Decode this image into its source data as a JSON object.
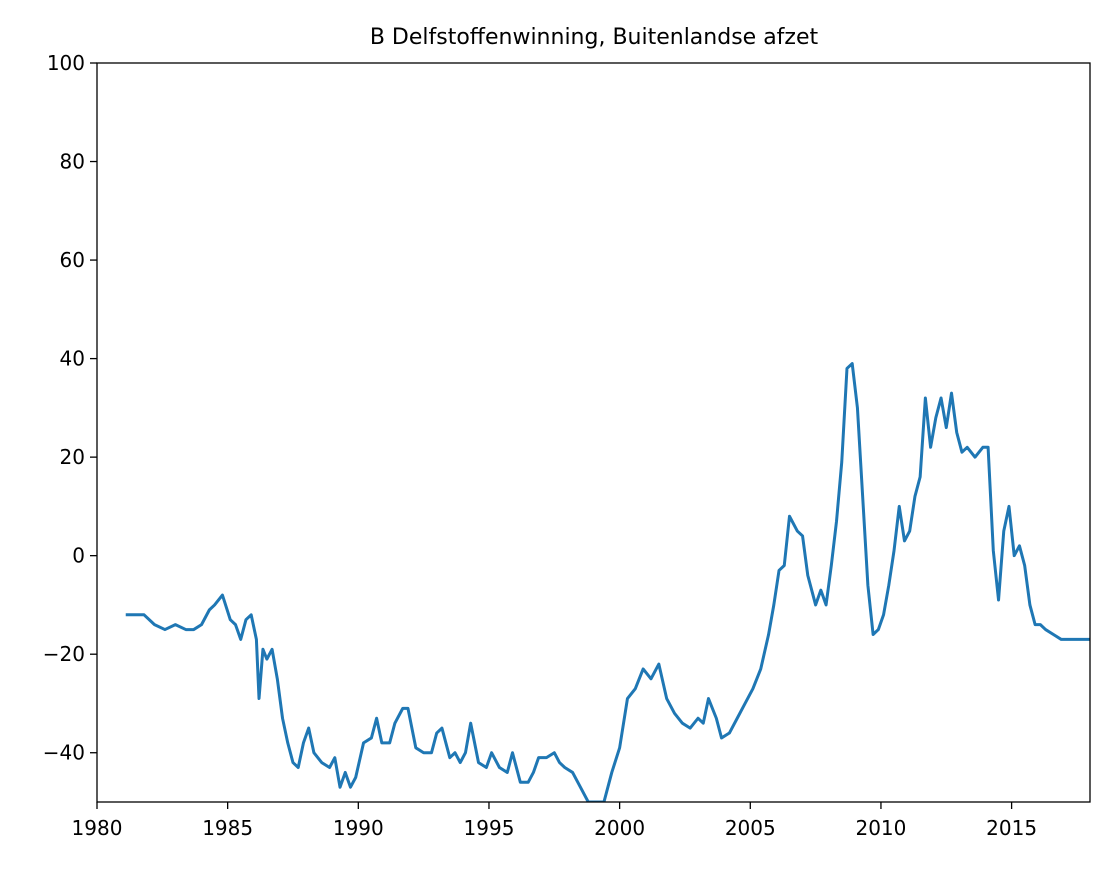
{
  "chart_data": {
    "type": "line",
    "title": "B Delfstoffenwinning, Buitenlandse afzet",
    "xlabel": "",
    "ylabel": "",
    "xlim": [
      1980,
      2018
    ],
    "ylim": [
      -50,
      100
    ],
    "x_ticks": [
      1980,
      1985,
      1990,
      1995,
      2000,
      2005,
      2010,
      2015
    ],
    "x_tick_labels": [
      "1980",
      "1985",
      "1990",
      "1995",
      "2000",
      "2005",
      "2010",
      "2015"
    ],
    "y_ticks": [
      -40,
      -20,
      0,
      20,
      40,
      60,
      80,
      100
    ],
    "y_tick_labels": [
      "−40",
      "−20",
      "0",
      "20",
      "40",
      "60",
      "80",
      "100"
    ],
    "grid": false,
    "legend": "none",
    "line_color": "#1f77b4",
    "series": [
      {
        "x": [
          1981.1,
          1981.5,
          1981.8,
          1982.2,
          1982.6,
          1983.0,
          1983.4,
          1983.7,
          1984.0,
          1984.3,
          1984.5,
          1984.8,
          1985.1,
          1985.3,
          1985.5,
          1985.7,
          1985.9,
          1986.1,
          1986.2,
          1986.35,
          1986.5,
          1986.7,
          1986.9,
          1987.1,
          1987.3,
          1987.5,
          1987.7,
          1987.9,
          1988.1,
          1988.3,
          1988.6,
          1988.9,
          1989.1,
          1989.3,
          1989.5,
          1989.7,
          1989.9,
          1990.2,
          1990.5,
          1990.7,
          1990.9,
          1991.2,
          1991.4,
          1991.7,
          1991.9,
          1992.2,
          1992.5,
          1992.8,
          1993.0,
          1993.2,
          1993.5,
          1993.7,
          1993.9,
          1994.1,
          1994.3,
          1994.6,
          1994.9,
          1995.1,
          1995.4,
          1995.7,
          1995.9,
          1996.2,
          1996.5,
          1996.7,
          1996.9,
          1997.2,
          1997.5,
          1997.7,
          1997.9,
          1998.2,
          1998.5,
          1998.8,
          1999.1,
          1999.4,
          1999.7,
          2000.0,
          2000.3,
          2000.6,
          2000.9,
          2001.2,
          2001.5,
          2001.8,
          2002.1,
          2002.4,
          2002.7,
          2003.0,
          2003.2,
          2003.4,
          2003.7,
          2003.9,
          2004.2,
          2004.5,
          2004.8,
          2005.1,
          2005.4,
          2005.7,
          2005.9,
          2006.1,
          2006.3,
          2006.5,
          2006.8,
          2007.0,
          2007.2,
          2007.5,
          2007.7,
          2007.9,
          2008.1,
          2008.3,
          2008.5,
          2008.7,
          2008.9,
          2009.1,
          2009.3,
          2009.5,
          2009.7,
          2009.9,
          2010.1,
          2010.3,
          2010.5,
          2010.7,
          2010.9,
          2011.1,
          2011.3,
          2011.5,
          2011.7,
          2011.9,
          2012.1,
          2012.3,
          2012.5,
          2012.7,
          2012.9,
          2013.1,
          2013.3,
          2013.6,
          2013.9,
          2014.1,
          2014.3,
          2014.5,
          2014.7,
          2014.9,
          2015.1,
          2015.3,
          2015.5,
          2015.7,
          2015.9,
          2016.1,
          2016.3,
          2016.6,
          2016.9,
          2017.2,
          2017.5,
          2017.8,
          2018.0
        ],
        "y": [
          -12,
          -12,
          -12,
          -14,
          -15,
          -14,
          -15,
          -15,
          -14,
          -11,
          -10,
          -8,
          -13,
          -14,
          -17,
          -13,
          -12,
          -17,
          -29,
          -19,
          -21,
          -19,
          -25,
          -33,
          -38,
          -42,
          -43,
          -38,
          -35,
          -40,
          -42,
          -43,
          -41,
          -47,
          -44,
          -47,
          -45,
          -38,
          -37,
          -33,
          -38,
          -38,
          -34,
          -31,
          -31,
          -39,
          -40,
          -40,
          -36,
          -35,
          -41,
          -40,
          -42,
          -40,
          -34,
          -42,
          -43,
          -40,
          -43,
          -44,
          -40,
          -46,
          -46,
          -44,
          -41,
          -41,
          -40,
          -42,
          -43,
          -44,
          -47,
          -50,
          -50,
          -50,
          -44,
          -39,
          -29,
          -27,
          -23,
          -25,
          -22,
          -29,
          -32,
          -34,
          -35,
          -33,
          -34,
          -29,
          -33,
          -37,
          -36,
          -33,
          -30,
          -27,
          -23,
          -16,
          -10,
          -3,
          -2,
          8,
          5,
          4,
          -4,
          -10,
          -7,
          -10,
          -2,
          7,
          19,
          38,
          39,
          30,
          12,
          -6,
          -16,
          -15,
          -12,
          -6,
          1,
          10,
          3,
          5,
          12,
          16,
          32,
          22,
          28,
          32,
          26,
          33,
          25,
          21,
          22,
          20,
          22,
          22,
          1,
          -9,
          5,
          10,
          0,
          2,
          -2,
          -10,
          -14,
          -14,
          -15,
          -16,
          -17,
          -17,
          -17,
          -17,
          -17
        ]
      }
    ]
  }
}
